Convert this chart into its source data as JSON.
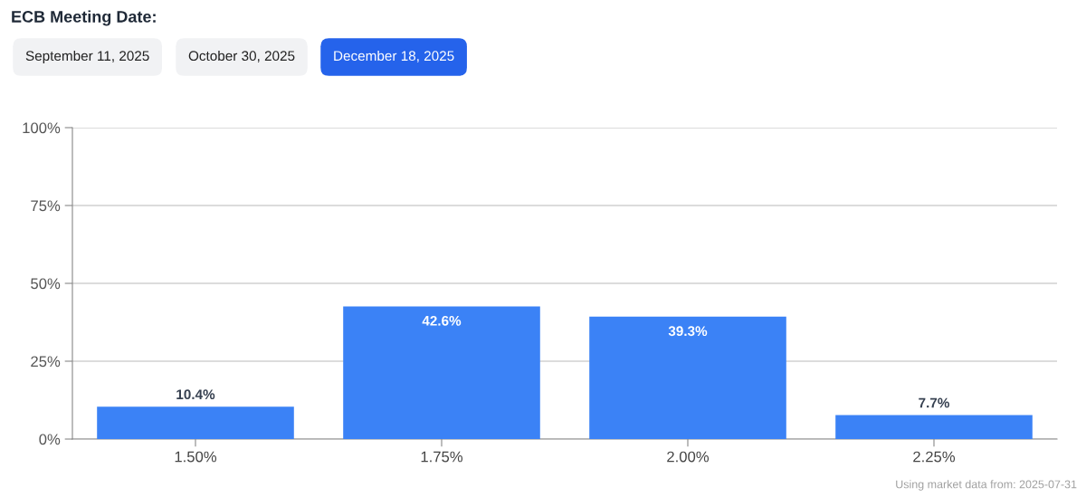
{
  "chart_data": {
    "type": "bar",
    "title": "ECB Meeting Date:",
    "categories": [
      "1.50%",
      "1.75%",
      "2.00%",
      "2.25%"
    ],
    "values": [
      10.4,
      42.6,
      39.3,
      7.7
    ],
    "value_labels": [
      "10.4%",
      "42.6%",
      "39.3%",
      "7.7%"
    ],
    "color": "#3b82f6",
    "ylim": [
      0,
      100
    ],
    "yticks": [
      {
        "value": 0,
        "label": "0%"
      },
      {
        "value": 25,
        "label": "25%"
      },
      {
        "value": 50,
        "label": "50%"
      },
      {
        "value": 75,
        "label": "75%"
      },
      {
        "value": 100,
        "label": "100%"
      }
    ],
    "grid": "y",
    "annotations": [
      "September 11, 2025",
      "October 30, 2025",
      "December 18, 2025",
      "Using market data from: 2025-07-31"
    ]
  }
}
